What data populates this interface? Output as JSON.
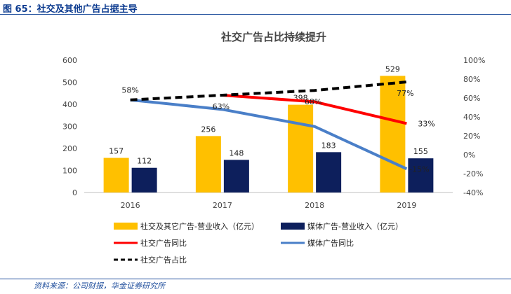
{
  "figure": {
    "title": "图 65：社交及其他广告占据主导",
    "source": "资料来源：公司财报，华金证券研究所"
  },
  "chart_data": {
    "type": "bar",
    "title": "社交广告占比持续提升",
    "categories": [
      "2016",
      "2017",
      "2018",
      "2019"
    ],
    "y_left": {
      "ticks": [
        "0",
        "100",
        "200",
        "300",
        "400",
        "500",
        "600"
      ],
      "ylim": [
        0,
        600
      ]
    },
    "y_right": {
      "ticks": [
        "-40%",
        "-20%",
        "0%",
        "20%",
        "40%",
        "60%",
        "80%",
        "100%"
      ],
      "ylim": [
        -40,
        100
      ]
    },
    "series": [
      {
        "name": "社交及其它广告-营业收入（亿元）",
        "type": "bar",
        "axis": "left",
        "color": "#ffc000",
        "values": [
          157,
          256,
          398,
          529
        ],
        "labels": [
          "157",
          "256",
          "398",
          "529"
        ]
      },
      {
        "name": "媒体广告-营业收入（亿元）",
        "type": "bar",
        "axis": "left",
        "color": "#0d1f5c",
        "values": [
          112,
          148,
          183,
          155
        ],
        "labels": [
          "112",
          "148",
          "183",
          "155"
        ]
      },
      {
        "name": "社交广告同比",
        "type": "line",
        "axis": "right",
        "color": "#ff0000",
        "values": [
          null,
          63,
          56,
          33
        ],
        "labels": [
          "",
          "",
          "",
          "33%"
        ]
      },
      {
        "name": "媒体广告同比",
        "type": "line",
        "axis": "right",
        "color": "#4a7fc8",
        "values": [
          58,
          null,
          null,
          -15
        ],
        "labels": [
          "58%",
          "",
          "",
          "-15%"
        ]
      },
      {
        "name": "社交广告占比",
        "type": "dashed-line",
        "axis": "right",
        "color": "#000000",
        "values": [
          58,
          63,
          68,
          77
        ],
        "labels": [
          "",
          "63%",
          "68%",
          "77%"
        ]
      }
    ]
  }
}
